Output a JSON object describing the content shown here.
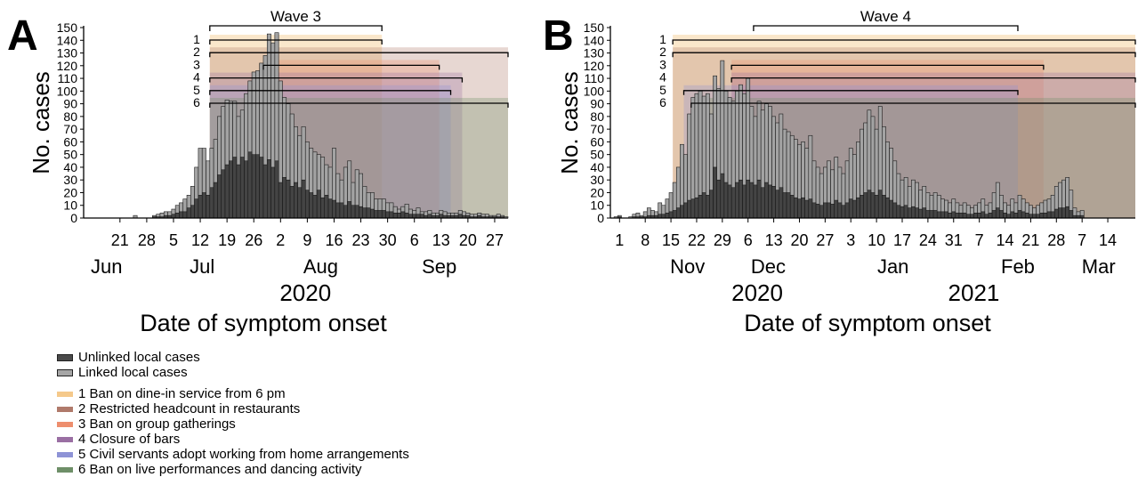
{
  "legend": {
    "cases": [
      {
        "label": "Unlinked local cases",
        "color": "#4a4a4a"
      },
      {
        "label": "Linked local cases",
        "color": "#a6a6a6"
      }
    ],
    "measures": [
      {
        "label": "1 Ban on dine-in service from 6 pm",
        "color": "#f5c98b"
      },
      {
        "label": "2 Restricted headcount in restaurants",
        "color": "#b07a6b"
      },
      {
        "label": "3 Ban on group gatherings",
        "color": "#ee8e6e"
      },
      {
        "label": "4 Closure of bars",
        "color": "#9a6fa3"
      },
      {
        "label": "5 Civil servants adopt working from home arrangements",
        "color": "#8e93d6"
      },
      {
        "label": "6 Ban on live performances and dancing activity",
        "color": "#6e8f68"
      }
    ]
  },
  "chart_data": [
    {
      "panel": "A",
      "type": "bar",
      "title": "Wave 3",
      "ylabel": "No. cases",
      "xlabel": "Date of symptom onset",
      "ylim": [
        0,
        150
      ],
      "yticks": [
        0,
        10,
        20,
        30,
        40,
        50,
        60,
        70,
        80,
        90,
        100,
        110,
        120,
        130,
        140,
        150
      ],
      "x_start": "2020-06-12",
      "x_end": "2020-09-30",
      "xticks": [
        {
          "date": "2020-06-21",
          "label": "21"
        },
        {
          "date": "2020-06-28",
          "label": "28"
        },
        {
          "date": "2020-07-05",
          "label": "5"
        },
        {
          "date": "2020-07-12",
          "label": "12"
        },
        {
          "date": "2020-07-19",
          "label": "19"
        },
        {
          "date": "2020-07-26",
          "label": "26"
        },
        {
          "date": "2020-08-02",
          "label": "2"
        },
        {
          "date": "2020-08-09",
          "label": "9"
        },
        {
          "date": "2020-08-16",
          "label": "16"
        },
        {
          "date": "2020-08-23",
          "label": "23"
        },
        {
          "date": "2020-08-30",
          "label": "30"
        },
        {
          "date": "2020-09-06",
          "label": "6"
        },
        {
          "date": "2020-09-13",
          "label": "13"
        },
        {
          "date": "2020-09-20",
          "label": "20"
        },
        {
          "date": "2020-09-27",
          "label": "27"
        }
      ],
      "month_labels": [
        {
          "date": "2020-06-18",
          "label": "Jun"
        },
        {
          "date": "2020-07-13",
          "label": "Jul"
        },
        {
          "date": "2020-08-13",
          "label": "Aug"
        },
        {
          "date": "2020-09-13",
          "label": "Sep"
        }
      ],
      "year_labels": [
        {
          "date": "2020-08-09",
          "label": "2020"
        }
      ],
      "measures": [
        {
          "id": "1",
          "start": "2020-07-15",
          "end": "2020-08-28"
        },
        {
          "id": "2",
          "start": "2020-07-15",
          "end": "2020-09-30"
        },
        {
          "id": "3",
          "start": "2020-07-29",
          "end": "2020-09-12"
        },
        {
          "id": "4",
          "start": "2020-07-15",
          "end": "2020-09-18"
        },
        {
          "id": "5",
          "start": "2020-07-15",
          "end": "2020-09-15"
        },
        {
          "id": "6",
          "start": "2020-07-15",
          "end": "2020-09-30"
        }
      ],
      "wave_bracket": {
        "start": "2020-07-15",
        "end": "2020-08-28"
      },
      "series": [
        {
          "name": "Linked local cases",
          "values": [
            0,
            0,
            0,
            0,
            0,
            0,
            0,
            0,
            0,
            0,
            0,
            0,
            0,
            2,
            0,
            0,
            0,
            0,
            2,
            3,
            4,
            5,
            5,
            7,
            10,
            12,
            15,
            18,
            25,
            40,
            55,
            55,
            45,
            55,
            62,
            80,
            88,
            93,
            92,
            92,
            80,
            85,
            98,
            108,
            115,
            116,
            122,
            128,
            145,
            138,
            146,
            108,
            95,
            90,
            82,
            72,
            65,
            72,
            60,
            55,
            52,
            50,
            48,
            42,
            40,
            55,
            35,
            30,
            40,
            45,
            28,
            38,
            35,
            25,
            20,
            20,
            15,
            15,
            15,
            12,
            12,
            9,
            7,
            9,
            11,
            7,
            6,
            8,
            5,
            5,
            6,
            4,
            4,
            6,
            5,
            4,
            4,
            4,
            6,
            5,
            4,
            3,
            3,
            4,
            3,
            3,
            2,
            2,
            3,
            2,
            1
          ]
        },
        {
          "name": "Unlinked local cases",
          "values": [
            0,
            0,
            0,
            0,
            0,
            0,
            0,
            0,
            0,
            0,
            0,
            0,
            0,
            0,
            0,
            0,
            0,
            0,
            1,
            1,
            1,
            2,
            2,
            3,
            4,
            5,
            5,
            8,
            10,
            15,
            18,
            20,
            18,
            24,
            28,
            34,
            38,
            42,
            45,
            48,
            42,
            48,
            45,
            52,
            50,
            50,
            48,
            42,
            46,
            40,
            45,
            28,
            32,
            30,
            25,
            28,
            24,
            30,
            22,
            20,
            18,
            22,
            16,
            18,
            15,
            14,
            12,
            12,
            10,
            13,
            10,
            10,
            9,
            8,
            8,
            7,
            6,
            6,
            6,
            5,
            5,
            4,
            4,
            5,
            4,
            3,
            3,
            3,
            3,
            2,
            3,
            2,
            2,
            3,
            2,
            2,
            2,
            2,
            3,
            2,
            2,
            1,
            1,
            2,
            1,
            1,
            1,
            1,
            1,
            1,
            0
          ]
        }
      ]
    },
    {
      "panel": "B",
      "type": "bar",
      "title": "Wave 4",
      "ylabel": "No. cases",
      "xlabel": "Date of symptom onset",
      "ylim": [
        0,
        150
      ],
      "yticks": [
        0,
        10,
        20,
        30,
        40,
        50,
        60,
        70,
        80,
        90,
        100,
        110,
        120,
        130,
        140,
        150
      ],
      "x_start": "2020-10-30",
      "x_end": "2021-03-21",
      "xticks": [
        {
          "date": "2020-11-01",
          "label": "1"
        },
        {
          "date": "2020-11-08",
          "label": "8"
        },
        {
          "date": "2020-11-15",
          "label": "15"
        },
        {
          "date": "2020-11-22",
          "label": "22"
        },
        {
          "date": "2020-11-29",
          "label": "29"
        },
        {
          "date": "2020-12-06",
          "label": "6"
        },
        {
          "date": "2020-12-13",
          "label": "13"
        },
        {
          "date": "2020-12-20",
          "label": "20"
        },
        {
          "date": "2020-12-27",
          "label": "27"
        },
        {
          "date": "2021-01-03",
          "label": "3"
        },
        {
          "date": "2021-01-10",
          "label": "10"
        },
        {
          "date": "2021-01-17",
          "label": "17"
        },
        {
          "date": "2021-01-24",
          "label": "24"
        },
        {
          "date": "2021-01-31",
          "label": "31"
        },
        {
          "date": "2021-02-07",
          "label": "7"
        },
        {
          "date": "2021-02-14",
          "label": "14"
        },
        {
          "date": "2021-02-21",
          "label": "21"
        },
        {
          "date": "2021-02-28",
          "label": "28"
        },
        {
          "date": "2021-03-07",
          "label": "7"
        },
        {
          "date": "2021-03-14",
          "label": "14"
        }
      ],
      "month_labels": [
        {
          "date": "2020-11-20",
          "label": "Nov"
        },
        {
          "date": "2020-12-12",
          "label": "Dec"
        },
        {
          "date": "2021-01-15",
          "label": "Jan"
        },
        {
          "date": "2021-02-18",
          "label": "Feb"
        },
        {
          "date": "2021-03-12",
          "label": "Mar"
        }
      ],
      "year_labels": [
        {
          "date": "2020-12-09",
          "label": "2020"
        },
        {
          "date": "2021-02-06",
          "label": "2021"
        }
      ],
      "measures": [
        {
          "id": "1",
          "start": "2020-11-16",
          "end": "2021-03-21"
        },
        {
          "id": "2",
          "start": "2020-11-16",
          "end": "2021-03-21"
        },
        {
          "id": "3",
          "start": "2020-12-02",
          "end": "2021-02-24"
        },
        {
          "id": "4",
          "start": "2020-12-02",
          "end": "2021-03-21"
        },
        {
          "id": "5",
          "start": "2020-11-19",
          "end": "2021-02-17"
        },
        {
          "id": "6",
          "start": "2020-11-21",
          "end": "2021-03-21"
        }
      ],
      "wave_bracket": {
        "start": "2020-12-08",
        "end": "2021-02-17"
      },
      "series": [
        {
          "name": "Linked local cases",
          "values": [
            0,
            1,
            2,
            0,
            0,
            1,
            3,
            4,
            2,
            5,
            8,
            6,
            5,
            12,
            10,
            15,
            20,
            28,
            40,
            58,
            50,
            82,
            95,
            98,
            100,
            96,
            98,
            82,
            112,
            102,
            124,
            100,
            95,
            92,
            100,
            105,
            98,
            110,
            88,
            80,
            92,
            85,
            90,
            88,
            80,
            75,
            82,
            70,
            68,
            65,
            62,
            58,
            60,
            55,
            65,
            45,
            40,
            35,
            40,
            45,
            38,
            48,
            40,
            35,
            45,
            55,
            50,
            60,
            70,
            75,
            85,
            80,
            70,
            88,
            72,
            60,
            55,
            45,
            35,
            30,
            32,
            25,
            30,
            28,
            22,
            25,
            20,
            18,
            20,
            18,
            15,
            14,
            12,
            15,
            12,
            10,
            12,
            10,
            8,
            10,
            12,
            15,
            10,
            12,
            20,
            28,
            18,
            12,
            10,
            15,
            12,
            18,
            15,
            12,
            10,
            8,
            10,
            12,
            14,
            15,
            18,
            25,
            28,
            30,
            32,
            22,
            8,
            5,
            6
          ]
        },
        {
          "name": "Unlinked local cases",
          "values": [
            0,
            0,
            1,
            0,
            0,
            0,
            1,
            1,
            1,
            1,
            2,
            2,
            2,
            3,
            3,
            4,
            5,
            6,
            8,
            10,
            12,
            14,
            15,
            16,
            18,
            20,
            18,
            22,
            40,
            30,
            35,
            28,
            26,
            24,
            28,
            30,
            26,
            30,
            28,
            26,
            30,
            24,
            28,
            26,
            25,
            22,
            24,
            20,
            20,
            18,
            16,
            15,
            16,
            14,
            15,
            12,
            11,
            10,
            12,
            12,
            11,
            14,
            12,
            10,
            12,
            15,
            14,
            16,
            18,
            20,
            22,
            20,
            18,
            22,
            18,
            16,
            14,
            12,
            10,
            9,
            10,
            8,
            9,
            8,
            7,
            8,
            6,
            6,
            6,
            5,
            5,
            5,
            4,
            5,
            4,
            4,
            4,
            3,
            3,
            4,
            4,
            5,
            3,
            4,
            6,
            8,
            6,
            4,
            3,
            5,
            4,
            6,
            5,
            4,
            3,
            3,
            3,
            4,
            4,
            5,
            5,
            7,
            8,
            8,
            9,
            6,
            2,
            2,
            2
          ]
        }
      ]
    }
  ]
}
